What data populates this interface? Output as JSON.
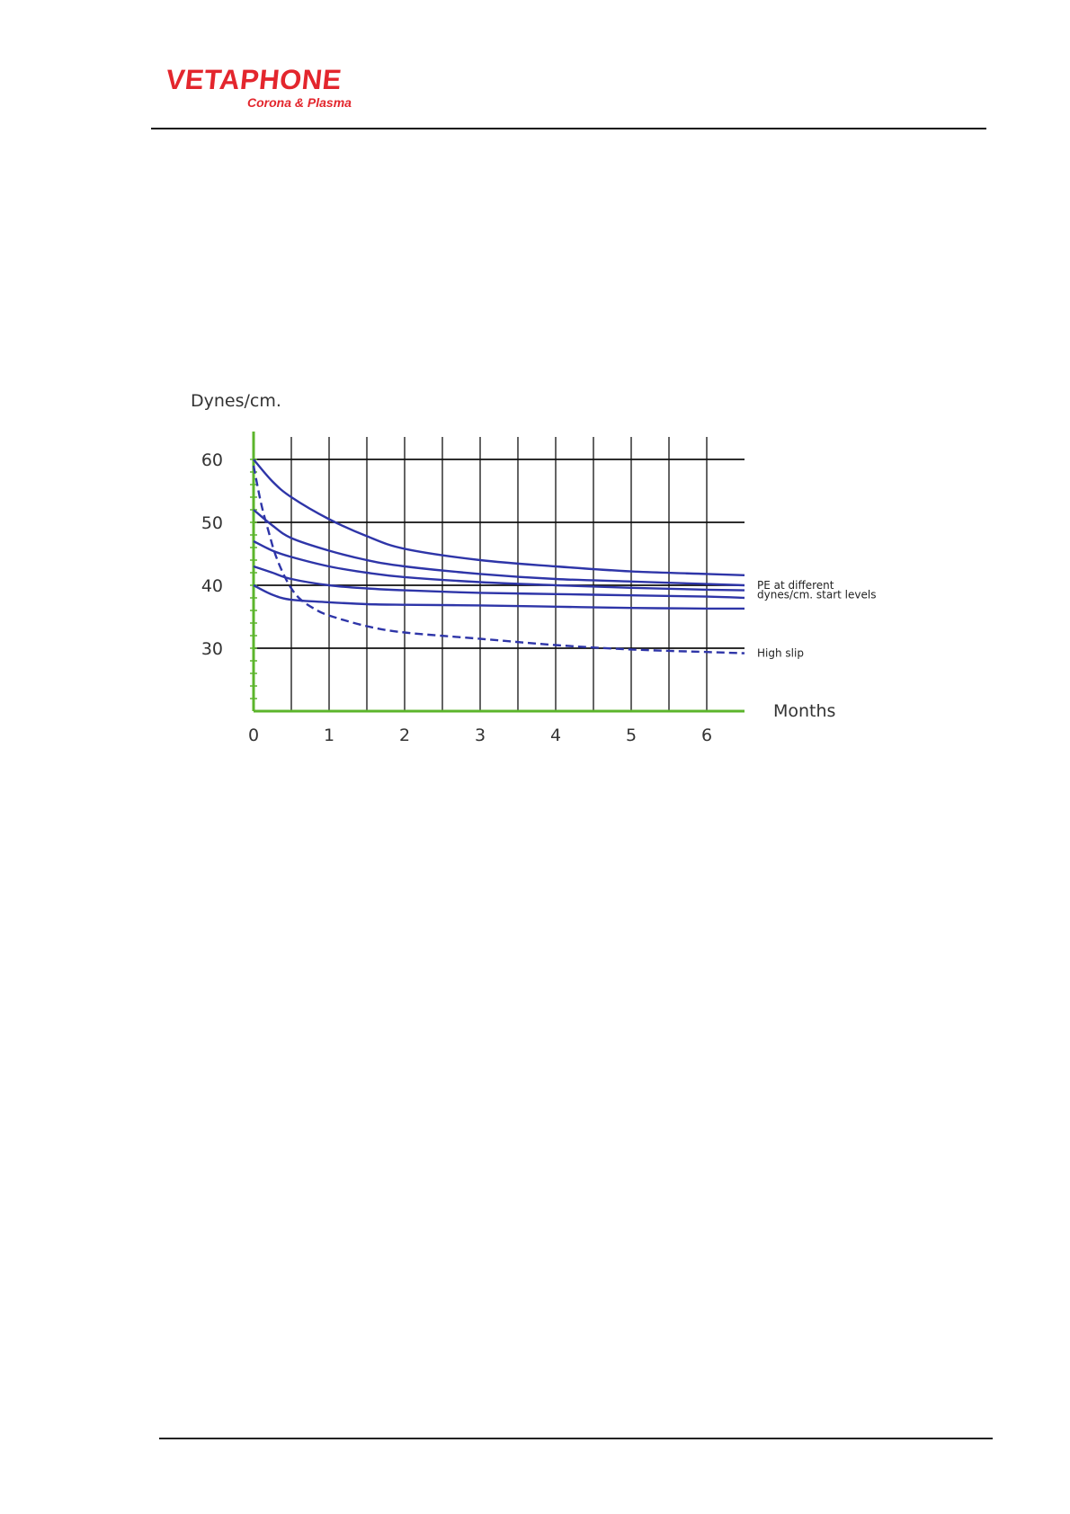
{
  "header": {
    "logo_name": "VETAPHONE",
    "logo_tagline": "Corona & Plasma",
    "brand_color": "#e3262d"
  },
  "colors": {
    "curve": "#2e35a8",
    "axis": "#5cb52c",
    "grid": "#111111",
    "text": "#333333"
  },
  "chart_data": {
    "type": "line",
    "ylabel": "Dynes/cm.",
    "xlabel": "Months",
    "x_ticks": [
      "0",
      "1",
      "2",
      "3",
      "4",
      "5",
      "6"
    ],
    "y_ticks": [
      "30",
      "40",
      "50",
      "60"
    ],
    "xlim": [
      0,
      6.5
    ],
    "ylim": [
      20,
      62
    ],
    "grid": true,
    "annotations": [
      {
        "text": "PE at different",
        "near_y": 40
      },
      {
        "text": "dynes/cm. start levels",
        "near_y": 38.5
      },
      {
        "text": "High slip",
        "near_y": 29.2
      }
    ],
    "series": [
      {
        "style": "solid",
        "x": [
          0,
          0.25,
          0.5,
          1,
          1.5,
          2,
          3,
          4,
          5,
          6,
          6.5
        ],
        "y": [
          60,
          56.5,
          54,
          50.5,
          47.8,
          45.8,
          44,
          43,
          42.2,
          41.8,
          41.6
        ]
      },
      {
        "style": "solid",
        "x": [
          0,
          0.25,
          0.5,
          1,
          1.5,
          2,
          3,
          4,
          5,
          6,
          6.5
        ],
        "y": [
          52,
          49.5,
          47.5,
          45.5,
          44,
          43,
          41.8,
          41,
          40.6,
          40.2,
          40
        ]
      },
      {
        "style": "solid",
        "x": [
          0,
          0.25,
          0.5,
          1,
          1.5,
          2,
          3,
          4,
          5,
          6,
          6.5
        ],
        "y": [
          47,
          45.5,
          44.5,
          43,
          42,
          41.3,
          40.5,
          40,
          39.6,
          39.3,
          39.2
        ]
      },
      {
        "style": "solid",
        "x": [
          0,
          0.25,
          0.5,
          1,
          1.5,
          2,
          3,
          4,
          5,
          6,
          6.5
        ],
        "y": [
          43,
          42,
          41,
          40,
          39.5,
          39.2,
          38.8,
          38.6,
          38.4,
          38.2,
          38
        ]
      },
      {
        "style": "solid",
        "x": [
          0,
          0.25,
          0.5,
          1,
          1.5,
          2,
          3,
          4,
          5,
          6,
          6.5
        ],
        "y": [
          40,
          38.5,
          37.7,
          37.3,
          37,
          36.9,
          36.8,
          36.6,
          36.4,
          36.3,
          36.3
        ]
      },
      {
        "style": "dashed",
        "x": [
          0,
          0.1,
          0.2,
          0.3,
          0.45,
          0.6,
          0.8,
          1,
          1.5,
          2,
          3,
          4,
          5,
          6,
          6.5
        ],
        "y": [
          59,
          53,
          48.5,
          44.5,
          40.5,
          38,
          36.3,
          35.2,
          33.5,
          32.5,
          31.5,
          30.5,
          29.8,
          29.4,
          29.2
        ]
      }
    ]
  }
}
